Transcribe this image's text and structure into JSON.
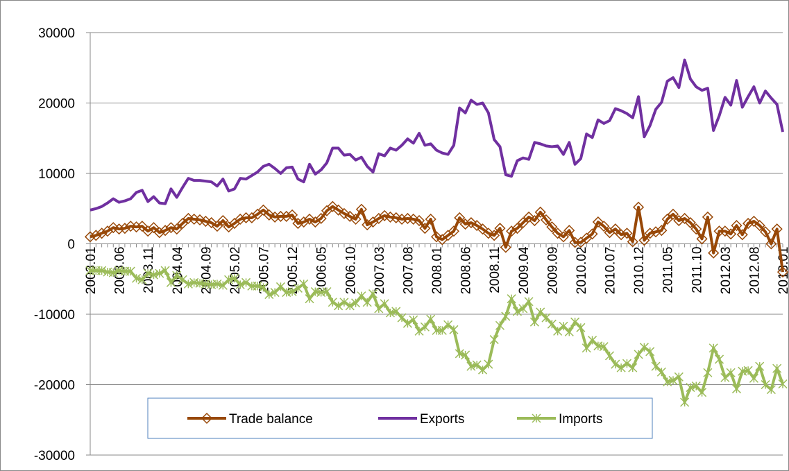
{
  "chart_data": {
    "type": "line",
    "categories": [
      "2003.01",
      null,
      null,
      null,
      null,
      "2003.06",
      null,
      null,
      null,
      null,
      "2003.11",
      null,
      null,
      null,
      null,
      "2004.04",
      null,
      null,
      null,
      null,
      "2004.09",
      null,
      null,
      null,
      null,
      "2005.02",
      null,
      null,
      null,
      null,
      "2005.07",
      null,
      null,
      null,
      null,
      "2005.12",
      null,
      null,
      null,
      null,
      "2006.05",
      null,
      null,
      null,
      null,
      "2006.10",
      null,
      null,
      null,
      null,
      "2007.03",
      null,
      null,
      null,
      null,
      "2007.08",
      null,
      null,
      null,
      null,
      "2008.01",
      null,
      null,
      null,
      null,
      "2008.06",
      null,
      null,
      null,
      null,
      "2008.11",
      null,
      null,
      null,
      null,
      "2009.04",
      null,
      null,
      null,
      null,
      "2009.09",
      null,
      null,
      null,
      null,
      "2010.02",
      null,
      null,
      null,
      null,
      "2010.07",
      null,
      null,
      null,
      null,
      "2010.12",
      null,
      null,
      null,
      null,
      "2011.05",
      null,
      null,
      null,
      null,
      "2011.10",
      null,
      null,
      null,
      null,
      "2012.03",
      null,
      null,
      null,
      null,
      "2012.08",
      null,
      null,
      null,
      null,
      "2013.01"
    ],
    "series": [
      {
        "name": "Trade balance",
        "color": "#984807",
        "marker": "diamond",
        "values": [
          1000,
          1200,
          1500,
          1800,
          2300,
          2100,
          2200,
          2500,
          2400,
          2500,
          1800,
          2300,
          1600,
          1900,
          2300,
          2100,
          2900,
          3600,
          3500,
          3400,
          3200,
          3000,
          2500,
          3300,
          2400,
          2900,
          3500,
          3700,
          3700,
          4200,
          4800,
          4100,
          3800,
          3900,
          3900,
          4100,
          2900,
          3100,
          3500,
          3100,
          3600,
          4700,
          5300,
          4800,
          4300,
          3900,
          3500,
          4900,
          2700,
          3100,
          3600,
          4000,
          3800,
          3700,
          3500,
          3600,
          3500,
          3300,
          2200,
          3500,
          1000,
          600,
          1200,
          1800,
          3700,
          2800,
          3000,
          2600,
          2100,
          1500,
          1200,
          2200,
          -500,
          1800,
          2200,
          3000,
          3800,
          3300,
          4500,
          3400,
          2400,
          1500,
          1000,
          1900,
          200,
          200,
          800,
          1400,
          3100,
          2500,
          1600,
          2100,
          1300,
          1500,
          300,
          5200,
          500,
          1500,
          1700,
          1900,
          3500,
          4200,
          3300,
          3600,
          3000,
          2100,
          700,
          3800,
          -1300,
          1800,
          1800,
          1400,
          2600,
          1300,
          2900,
          3200,
          2600,
          1700,
          0,
          2100,
          -4000
        ]
      },
      {
        "name": "Exports",
        "color": "#7030a0",
        "marker": "none",
        "values": [
          4800,
          5000,
          5300,
          5800,
          6400,
          5900,
          6100,
          6400,
          7300,
          7600,
          6000,
          6700,
          5800,
          5700,
          7800,
          6600,
          8000,
          9300,
          9000,
          9000,
          8900,
          8800,
          8200,
          9200,
          7500,
          7800,
          9300,
          9200,
          9700,
          10200,
          11000,
          11300,
          10700,
          10000,
          10800,
          10900,
          9200,
          8800,
          11300,
          9900,
          10500,
          11500,
          13600,
          13600,
          12600,
          12700,
          11900,
          12300,
          11000,
          10200,
          12800,
          12500,
          13600,
          13300,
          14000,
          14900,
          14300,
          15700,
          14000,
          14200,
          13300,
          12900,
          12700,
          14000,
          19300,
          18600,
          20400,
          19800,
          20000,
          18600,
          14800,
          13800,
          9800,
          9600,
          11800,
          12200,
          12000,
          14400,
          14200,
          13900,
          13800,
          13900,
          12700,
          14400,
          11300,
          12100,
          15600,
          15100,
          17600,
          17100,
          17500,
          19200,
          18900,
          18500,
          17900,
          20900,
          15200,
          16800,
          19100,
          20100,
          23100,
          23600,
          22200,
          26100,
          23400,
          22300,
          21800,
          22100,
          16100,
          18200,
          20800,
          19700,
          23200,
          19400,
          20900,
          22300,
          20000,
          21700,
          20700,
          19800,
          15900
        ]
      },
      {
        "name": "Imports",
        "color": "#9bbb59",
        "marker": "star",
        "values": [
          -3800,
          -3800,
          -3800,
          -4000,
          -4100,
          -3800,
          -3900,
          -3900,
          -4900,
          -5100,
          -4200,
          -4400,
          -4200,
          -3800,
          -5500,
          -4500,
          -5100,
          -5700,
          -5500,
          -5600,
          -5700,
          -5800,
          -5700,
          -5900,
          -5100,
          -4900,
          -5800,
          -5500,
          -6000,
          -6000,
          -6200,
          -7200,
          -6900,
          -6100,
          -6900,
          -6800,
          -6300,
          -5700,
          -7800,
          -6800,
          -6900,
          -6800,
          -8300,
          -8800,
          -8300,
          -8800,
          -8400,
          -7400,
          -8300,
          -7100,
          -9200,
          -8500,
          -9800,
          -9600,
          -10500,
          -11300,
          -10800,
          -12400,
          -11800,
          -10700,
          -12300,
          -12300,
          -11500,
          -12200,
          -15600,
          -15800,
          -17400,
          -17200,
          -17900,
          -17100,
          -13600,
          -11600,
          -10300,
          -7800,
          -9600,
          -9200,
          -8200,
          -11100,
          -9700,
          -10500,
          -11400,
          -12400,
          -11700,
          -12500,
          -11100,
          -11900,
          -14800,
          -13700,
          -14500,
          -14600,
          -15900,
          -17100,
          -17600,
          -17000,
          -17600,
          -15700,
          -14700,
          -15300,
          -17400,
          -18200,
          -19600,
          -19400,
          -18900,
          -22500,
          -20400,
          -20200,
          -21100,
          -18300,
          -14800,
          -16400,
          -19000,
          -18300,
          -20600,
          -18100,
          -18000,
          -19100,
          -17400,
          -20000,
          -20700,
          -17700,
          -19900
        ]
      }
    ],
    "ylim": [
      -30000,
      30000
    ],
    "yticks": [
      -30000,
      -20000,
      -10000,
      0,
      10000,
      20000,
      30000
    ],
    "grid": true,
    "legend": "bottom"
  }
}
